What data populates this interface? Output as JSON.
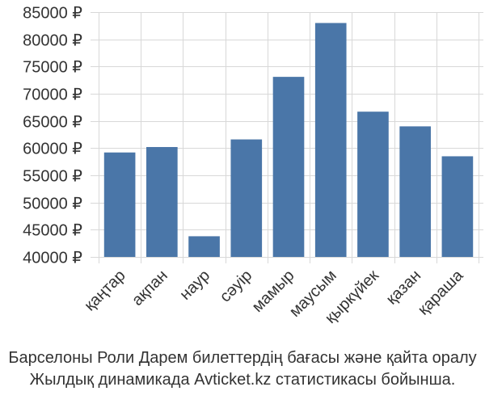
{
  "chart_data": {
    "type": "bar",
    "categories": [
      "қаңтар",
      "ақпан",
      "наур",
      "сәуір",
      "мамыр",
      "маусым",
      "қыркүйек",
      "қазан",
      "қараша"
    ],
    "values": [
      59200,
      60200,
      43800,
      61600,
      73100,
      83000,
      66700,
      64000,
      58500
    ],
    "y_ticks": [
      "40000 ₽",
      "45000 ₽",
      "50000 ₽",
      "55000 ₽",
      "60000 ₽",
      "65000 ₽",
      "70000 ₽",
      "75000 ₽",
      "80000 ₽",
      "85000 ₽"
    ],
    "ylim": [
      40000,
      85000
    ],
    "y_tick_step": 5000,
    "grid": true,
    "bar_color": "#4a76a8",
    "grid_color": "#d8d8d8"
  },
  "caption": {
    "line1": "Барселоны Роли Дарем билеттердің бағасы және қайта оралу",
    "line2": "Жылдық динамикада Avticket.kz статистикасы бойынша."
  }
}
